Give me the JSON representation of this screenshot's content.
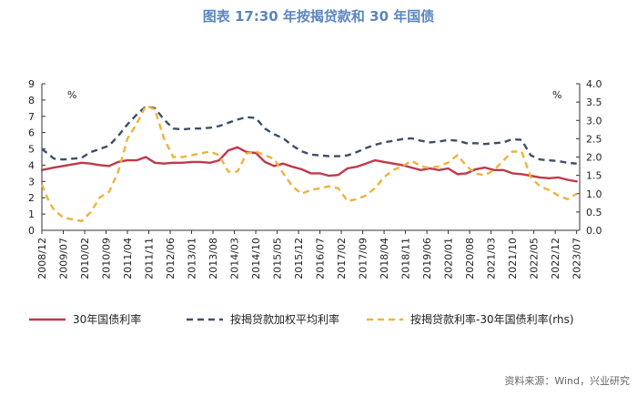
{
  "title": "图表 17:30 年按揭贷款和 30 年国债",
  "source": "资料来源：Wind，兴业研究",
  "chart_data": {
    "type": "line",
    "left_axis": {
      "min": 0,
      "max": 9,
      "ticks": [
        "0",
        "1",
        "2",
        "3",
        "4",
        "5",
        "6",
        "7",
        "8",
        "9"
      ],
      "unit_label": "%"
    },
    "right_axis": {
      "min": 0,
      "max": 4,
      "ticks": [
        "0.0",
        "0.5",
        "1.0",
        "1.5",
        "2.0",
        "2.5",
        "3.0",
        "3.5",
        "4.0"
      ],
      "unit_label": "%"
    },
    "x_range": [
      2008.917,
      2023.583
    ],
    "x_ticks": [
      {
        "label": "2008/12",
        "x": 2008.917
      },
      {
        "label": "2009/07",
        "x": 2009.5
      },
      {
        "label": "2010/02",
        "x": 2010.083
      },
      {
        "label": "2010/09",
        "x": 2010.667
      },
      {
        "label": "2011/04",
        "x": 2011.25
      },
      {
        "label": "2011/11",
        "x": 2011.833
      },
      {
        "label": "2012/06",
        "x": 2012.417
      },
      {
        "label": "2013/01",
        "x": 2013.0
      },
      {
        "label": "2013/08",
        "x": 2013.583
      },
      {
        "label": "2014/03",
        "x": 2014.167
      },
      {
        "label": "2014/10",
        "x": 2014.75
      },
      {
        "label": "2015/05",
        "x": 2015.333
      },
      {
        "label": "2015/12",
        "x": 2015.917
      },
      {
        "label": "2016/07",
        "x": 2016.5
      },
      {
        "label": "2017/02",
        "x": 2017.083
      },
      {
        "label": "2017/09",
        "x": 2017.667
      },
      {
        "label": "2018/04",
        "x": 2018.25
      },
      {
        "label": "2018/11",
        "x": 2018.833
      },
      {
        "label": "2019/06",
        "x": 2019.417
      },
      {
        "label": "2020/01",
        "x": 2020.0
      },
      {
        "label": "2020/08",
        "x": 2020.583
      },
      {
        "label": "2021/03",
        "x": 2021.167
      },
      {
        "label": "2021/10",
        "x": 2021.75
      },
      {
        "label": "2022/05",
        "x": 2022.333
      },
      {
        "label": "2022/12",
        "x": 2022.917
      },
      {
        "label": "2023/07",
        "x": 2023.5
      }
    ],
    "series": [
      {
        "name": "30年国债利率",
        "axis": "left",
        "color": "#c0394b",
        "dash": "solid",
        "x": [
          2008.917,
          2009.25,
          2009.5,
          2009.75,
          2010.0,
          2010.25,
          2010.5,
          2010.75,
          2011.0,
          2011.25,
          2011.5,
          2011.75,
          2012.0,
          2012.25,
          2012.5,
          2012.75,
          2013.0,
          2013.25,
          2013.5,
          2013.75,
          2014.0,
          2014.25,
          2014.5,
          2014.75,
          2015.0,
          2015.25,
          2015.5,
          2015.75,
          2016.0,
          2016.25,
          2016.5,
          2016.75,
          2017.0,
          2017.25,
          2017.5,
          2017.75,
          2018.0,
          2018.25,
          2018.5,
          2018.75,
          2019.0,
          2019.25,
          2019.5,
          2019.75,
          2020.0,
          2020.25,
          2020.5,
          2020.75,
          2021.0,
          2021.25,
          2021.5,
          2021.75,
          2022.0,
          2022.25,
          2022.5,
          2022.75,
          2023.0,
          2023.25,
          2023.5
        ],
        "values": [
          3.7,
          3.85,
          3.95,
          4.05,
          4.15,
          4.1,
          4.0,
          3.95,
          4.2,
          4.3,
          4.3,
          4.5,
          4.15,
          4.1,
          4.15,
          4.15,
          4.2,
          4.2,
          4.15,
          4.3,
          4.9,
          5.1,
          4.8,
          4.75,
          4.2,
          3.95,
          4.1,
          3.9,
          3.75,
          3.5,
          3.5,
          3.35,
          3.4,
          3.8,
          3.9,
          4.1,
          4.3,
          4.2,
          4.1,
          4.0,
          3.85,
          3.7,
          3.8,
          3.7,
          3.8,
          3.45,
          3.5,
          3.75,
          3.85,
          3.7,
          3.7,
          3.5,
          3.45,
          3.35,
          3.25,
          3.2,
          3.25,
          3.1,
          3.0
        ]
      },
      {
        "name": "按揭贷款加权平均利率",
        "axis": "left",
        "color": "#3b4f6b",
        "dash": "dashed",
        "x": [
          2008.917,
          2009.25,
          2009.5,
          2009.75,
          2010.0,
          2010.25,
          2010.5,
          2010.75,
          2011.0,
          2011.25,
          2011.5,
          2011.75,
          2012.0,
          2012.25,
          2012.5,
          2012.75,
          2013.0,
          2013.25,
          2013.5,
          2013.75,
          2014.0,
          2014.25,
          2014.5,
          2014.75,
          2015.0,
          2015.25,
          2015.5,
          2015.75,
          2016.0,
          2016.25,
          2016.5,
          2016.75,
          2017.0,
          2017.25,
          2017.5,
          2017.75,
          2018.0,
          2018.25,
          2018.5,
          2018.75,
          2019.0,
          2019.25,
          2019.5,
          2019.75,
          2020.0,
          2020.25,
          2020.5,
          2020.75,
          2021.0,
          2021.25,
          2021.5,
          2021.75,
          2022.0,
          2022.25,
          2022.5,
          2022.75,
          2023.0,
          2023.25,
          2023.5
        ],
        "values": [
          5.0,
          4.4,
          4.35,
          4.4,
          4.45,
          4.8,
          5.0,
          5.2,
          5.8,
          6.5,
          7.1,
          7.6,
          7.5,
          6.8,
          6.25,
          6.2,
          6.25,
          6.25,
          6.3,
          6.4,
          6.6,
          6.8,
          6.95,
          6.9,
          6.25,
          5.9,
          5.65,
          5.2,
          4.85,
          4.65,
          4.6,
          4.55,
          4.55,
          4.6,
          4.8,
          5.05,
          5.25,
          5.4,
          5.5,
          5.6,
          5.65,
          5.5,
          5.4,
          5.45,
          5.55,
          5.5,
          5.35,
          5.35,
          5.3,
          5.35,
          5.4,
          5.6,
          5.55,
          4.6,
          4.35,
          4.3,
          4.25,
          4.15,
          4.1
        ]
      },
      {
        "name": "按揭贷款利率-30年国债利率(rhs)",
        "axis": "right",
        "color": "#f0b23c",
        "dash": "dashed",
        "x": [
          2008.917,
          2009.083,
          2009.25,
          2009.5,
          2009.75,
          2010.0,
          2010.25,
          2010.5,
          2010.75,
          2011.0,
          2011.25,
          2011.5,
          2011.75,
          2012.0,
          2012.25,
          2012.5,
          2012.75,
          2013.0,
          2013.25,
          2013.5,
          2013.75,
          2014.0,
          2014.25,
          2014.5,
          2014.75,
          2015.0,
          2015.25,
          2015.5,
          2015.75,
          2016.0,
          2016.25,
          2016.5,
          2016.75,
          2017.0,
          2017.25,
          2017.5,
          2017.75,
          2018.0,
          2018.25,
          2018.5,
          2018.75,
          2019.0,
          2019.25,
          2019.5,
          2019.75,
          2020.0,
          2020.25,
          2020.5,
          2020.75,
          2021.0,
          2021.25,
          2021.5,
          2021.75,
          2022.0,
          2022.25,
          2022.5,
          2022.75,
          2023.0,
          2023.25,
          2023.5
        ],
        "values": [
          1.25,
          0.85,
          0.55,
          0.35,
          0.3,
          0.25,
          0.5,
          0.9,
          1.05,
          1.6,
          2.5,
          2.9,
          3.4,
          3.3,
          2.5,
          2.0,
          2.0,
          2.05,
          2.1,
          2.15,
          2.05,
          1.6,
          1.6,
          2.1,
          2.15,
          2.05,
          1.95,
          1.55,
          1.2,
          1.0,
          1.1,
          1.15,
          1.2,
          1.15,
          0.8,
          0.85,
          0.95,
          1.15,
          1.45,
          1.65,
          1.75,
          1.9,
          1.75,
          1.7,
          1.75,
          1.85,
          2.05,
          1.75,
          1.55,
          1.5,
          1.65,
          1.9,
          2.15,
          2.15,
          1.45,
          1.2,
          1.1,
          0.95,
          0.85,
          1.0
        ]
      }
    ],
    "legend": [
      {
        "label": "30年国债利率"
      },
      {
        "label": "按揭贷款加权平均利率"
      },
      {
        "label": "按揭贷款利率-30年国债利率(rhs)"
      }
    ]
  }
}
